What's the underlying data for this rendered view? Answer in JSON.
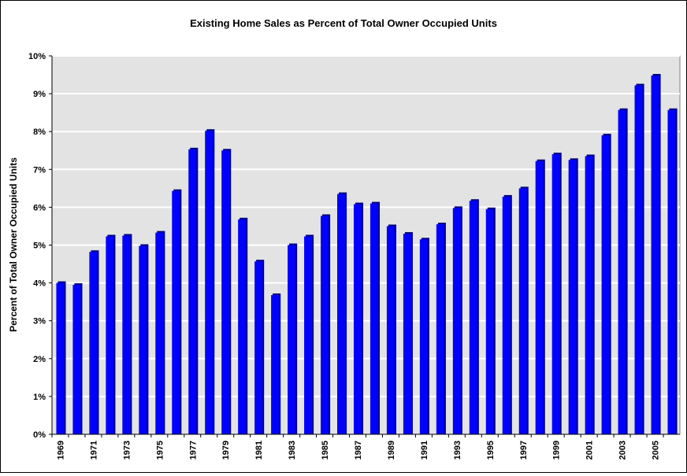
{
  "chart_data": {
    "type": "bar",
    "title": "Existing Home Sales as Percent of Total Owner Occupied Units",
    "xlabel": "",
    "ylabel": "Percent of Total Owner Occupied Units",
    "ylim": [
      0,
      10
    ],
    "y_ticks": [
      "0%",
      "1%",
      "2%",
      "3%",
      "4%",
      "5%",
      "6%",
      "7%",
      "8%",
      "9%",
      "10%"
    ],
    "grid": true,
    "legend": "none",
    "colors": {
      "bar": "#0000ff",
      "bar_shadow": "#000080",
      "plot_bg": "#e3e3e3",
      "grid": "#ffffff"
    },
    "categories": [
      "1969",
      "1970",
      "1971",
      "1972",
      "1973",
      "1974",
      "1975",
      "1976",
      "1977",
      "1978",
      "1979",
      "1980",
      "1981",
      "1982",
      "1983",
      "1984",
      "1985",
      "1986",
      "1987",
      "1988",
      "1989",
      "1990",
      "1991",
      "1992",
      "1993",
      "1994",
      "1995",
      "1996",
      "1997",
      "1998",
      "1999",
      "2000",
      "2001",
      "2002",
      "2003",
      "2004",
      "2005",
      "2006"
    ],
    "x_tick_labels": [
      "1969",
      "",
      "1971",
      "",
      "1973",
      "",
      "1975",
      "",
      "1977",
      "",
      "1979",
      "",
      "1981",
      "",
      "1983",
      "",
      "1985",
      "",
      "1987",
      "",
      "1989",
      "",
      "1991",
      "",
      "1993",
      "",
      "1995",
      "",
      "1997",
      "",
      "1999",
      "",
      "2001",
      "",
      "2003",
      "",
      "2005",
      ""
    ],
    "values": [
      4.0,
      3.95,
      4.82,
      5.23,
      5.25,
      4.98,
      5.33,
      6.43,
      7.53,
      8.02,
      7.5,
      5.68,
      4.57,
      3.68,
      5.0,
      5.23,
      5.77,
      6.35,
      6.08,
      6.1,
      5.5,
      5.3,
      5.15,
      5.55,
      5.98,
      6.17,
      5.95,
      6.28,
      6.5,
      7.22,
      7.4,
      7.25,
      7.35,
      7.9,
      8.57,
      9.22,
      9.48,
      8.57
    ]
  }
}
